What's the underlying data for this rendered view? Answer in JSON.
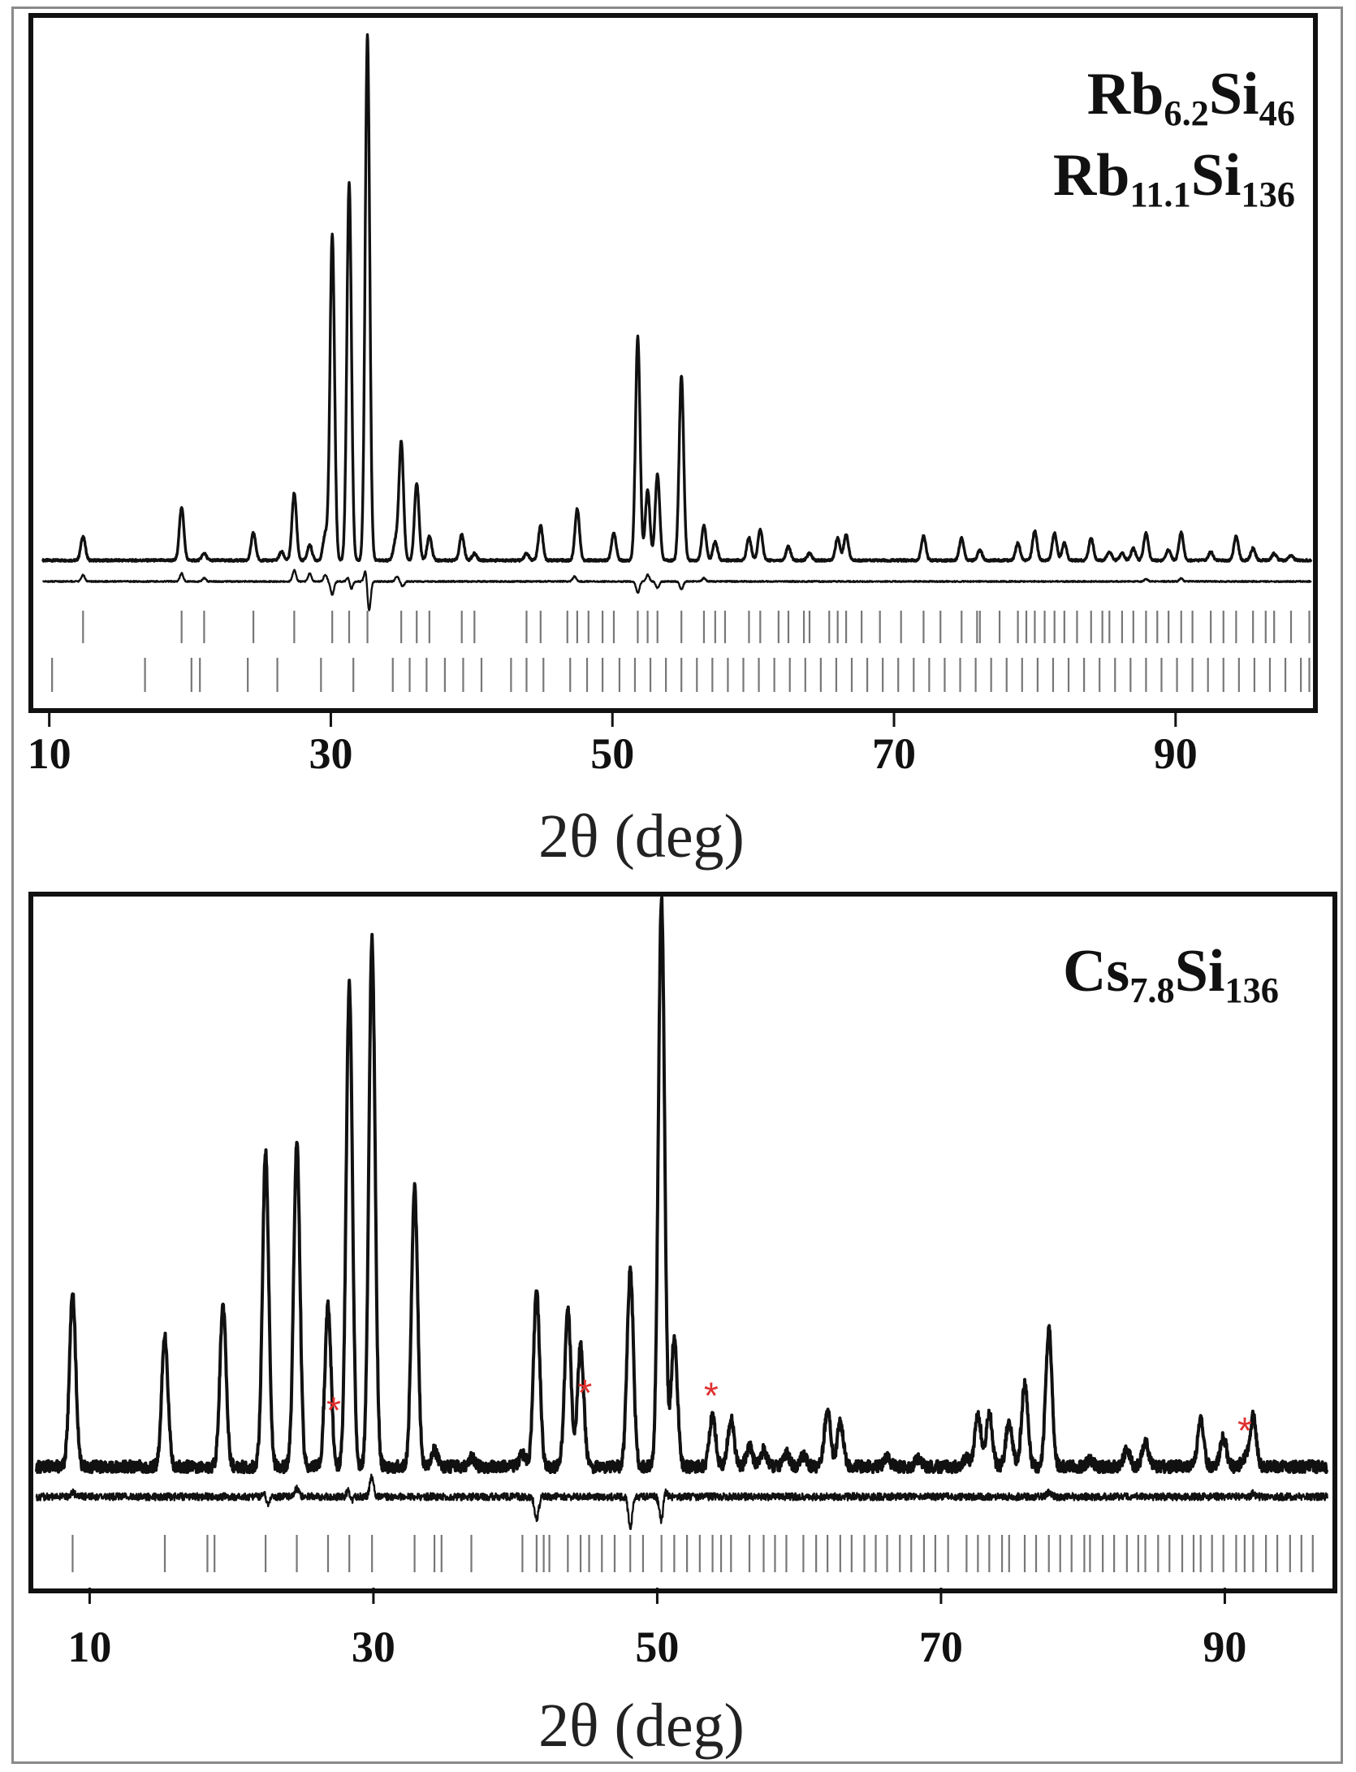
{
  "chart_data": [
    {
      "type": "line",
      "title_lines": [
        [
          {
            "t": "Rb",
            "sub": false
          },
          {
            "t": "6.2",
            "sub": true
          },
          {
            "t": "Si",
            "sub": false
          },
          {
            "t": "46",
            "sub": true
          }
        ],
        [
          {
            "t": "Rb",
            "sub": false
          },
          {
            "t": "11.1",
            "sub": true
          },
          {
            "t": "Si",
            "sub": false
          },
          {
            "t": "136",
            "sub": true
          }
        ]
      ],
      "xlabel": "2θ (deg)",
      "ylabel": "",
      "xlim": [
        9.5,
        99.7
      ],
      "xticks": [
        10,
        30,
        50,
        70,
        90
      ],
      "grid": false,
      "series": [
        {
          "role": "pattern",
          "peaks": [
            [
              12.4,
              28
            ],
            [
              19.4,
              62
            ],
            [
              21.0,
              8
            ],
            [
              24.5,
              32
            ],
            [
              26.5,
              10
            ],
            [
              27.4,
              78
            ],
            [
              28.5,
              18
            ],
            [
              29.6,
              30
            ],
            [
              30.1,
              380
            ],
            [
              31.3,
              440
            ],
            [
              32.6,
              610
            ],
            [
              34.6,
              22
            ],
            [
              35.0,
              138
            ],
            [
              36.1,
              90
            ],
            [
              37.0,
              28
            ],
            [
              39.3,
              30
            ],
            [
              40.2,
              8
            ],
            [
              43.9,
              8
            ],
            [
              44.9,
              40
            ],
            [
              47.5,
              60
            ],
            [
              50.1,
              32
            ],
            [
              51.8,
              260
            ],
            [
              52.5,
              82
            ],
            [
              53.2,
              100
            ],
            [
              54.9,
              215
            ],
            [
              56.5,
              40
            ],
            [
              57.3,
              22
            ],
            [
              59.7,
              26
            ],
            [
              60.5,
              36
            ],
            [
              62.5,
              16
            ],
            [
              64.0,
              8
            ],
            [
              66.0,
              26
            ],
            [
              66.6,
              30
            ],
            [
              72.1,
              28
            ],
            [
              74.8,
              26
            ],
            [
              76.1,
              12
            ],
            [
              78.8,
              20
            ],
            [
              80.0,
              34
            ],
            [
              81.4,
              32
            ],
            [
              82.1,
              20
            ],
            [
              84.0,
              26
            ],
            [
              85.3,
              10
            ],
            [
              86.2,
              8
            ],
            [
              87.0,
              14
            ],
            [
              87.9,
              32
            ],
            [
              89.5,
              12
            ],
            [
              90.4,
              32
            ],
            [
              92.5,
              10
            ],
            [
              94.3,
              28
            ],
            [
              95.5,
              14
            ],
            [
              97.0,
              8
            ],
            [
              98.2,
              6
            ]
          ]
        },
        {
          "role": "difference",
          "features": [
            [
              12.4,
              8
            ],
            [
              19.4,
              10
            ],
            [
              21.0,
              4
            ],
            [
              27.4,
              14
            ],
            [
              28.5,
              10
            ],
            [
              29.6,
              8
            ],
            [
              30.1,
              -16
            ],
            [
              31.3,
              12
            ],
            [
              31.4,
              -16
            ],
            [
              32.5,
              18
            ],
            [
              32.7,
              -40
            ],
            [
              34.7,
              6
            ],
            [
              35.1,
              -6
            ],
            [
              47.3,
              6
            ],
            [
              51.8,
              -14
            ],
            [
              52.5,
              8
            ],
            [
              53.2,
              -8
            ],
            [
              54.9,
              -10
            ],
            [
              56.5,
              4
            ],
            [
              87.9,
              3
            ],
            [
              90.4,
              4
            ]
          ]
        }
      ],
      "reflections": [
        [
          12.4,
          19.4,
          21.0,
          24.5,
          27.4,
          30.1,
          31.3,
          32.6,
          35.0,
          36.1,
          37.0,
          39.3,
          40.2,
          43.9,
          44.9,
          46.8,
          47.5,
          48.3,
          49.3,
          50.1,
          51.8,
          52.5,
          53.2,
          54.9,
          56.5,
          57.3,
          58.0,
          59.7,
          60.5,
          61.8,
          62.5,
          63.6,
          64.0,
          65.4,
          66.0,
          66.6,
          67.7,
          69.0,
          70.5,
          72.1,
          73.3,
          74.8,
          75.9,
          76.1,
          77.5,
          78.8,
          79.4,
          80.0,
          80.7,
          81.4,
          82.1,
          83.0,
          84.0,
          84.8,
          85.3,
          86.2,
          87.0,
          87.9,
          88.7,
          89.5,
          90.4,
          91.2,
          92.5,
          93.4,
          94.3,
          95.5,
          96.4,
          97.0,
          98.2,
          99.5
        ],
        [
          10.2,
          16.8,
          20.1,
          20.7,
          24.1,
          26.2,
          29.3,
          31.6,
          34.4,
          35.6,
          36.8,
          38.1,
          39.4,
          40.7,
          42.8,
          43.9,
          45.1,
          47.0,
          48.2,
          49.3,
          50.5,
          51.6,
          52.7,
          53.8,
          54.9,
          56.0,
          57.1,
          58.2,
          59.3,
          60.4,
          61.5,
          62.6,
          63.7,
          64.8,
          65.9,
          67.0,
          68.1,
          69.2,
          70.3,
          71.4,
          72.5,
          73.6,
          74.7,
          75.8,
          76.9,
          78.0,
          79.1,
          80.2,
          81.3,
          82.4,
          83.5,
          84.6,
          85.7,
          86.8,
          87.9,
          89.0,
          90.1,
          91.2,
          92.3,
          93.4,
          94.5,
          95.6,
          96.7,
          97.8,
          98.9,
          99.5
        ]
      ],
      "impurity_marks": []
    },
    {
      "type": "line",
      "title_lines": [
        [
          {
            "t": "Cs",
            "sub": false
          },
          {
            "t": "7.8",
            "sub": true
          },
          {
            "t": "Si",
            "sub": false
          },
          {
            "t": "136",
            "sub": true
          }
        ]
      ],
      "xlabel": "2θ (deg)",
      "ylabel": "",
      "xlim": [
        6.2,
        97.3
      ],
      "xticks": [
        10,
        30,
        50,
        70,
        90
      ],
      "grid": false,
      "series": [
        {
          "role": "pattern",
          "peaks": [
            [
              8.8,
              190
            ],
            [
              15.3,
              142
            ],
            [
              19.4,
              178
            ],
            [
              22.4,
              345
            ],
            [
              24.6,
              355
            ],
            [
              26.8,
              176
            ],
            [
              28.3,
              530
            ],
            [
              29.9,
              580
            ],
            [
              32.9,
              305
            ],
            [
              34.3,
              18
            ],
            [
              36.9,
              10
            ],
            [
              40.5,
              14
            ],
            [
              41.5,
              192
            ],
            [
              43.7,
              172
            ],
            [
              44.6,
              133
            ],
            [
              48.1,
              216
            ],
            [
              50.3,
              625
            ],
            [
              51.2,
              142
            ],
            [
              53.9,
              55
            ],
            [
              55.2,
              52
            ],
            [
              56.5,
              22
            ],
            [
              57.5,
              18
            ],
            [
              59.1,
              15
            ],
            [
              60.3,
              12
            ],
            [
              62.0,
              62
            ],
            [
              62.9,
              48
            ],
            [
              66.2,
              10
            ],
            [
              68.4,
              8
            ],
            [
              71.8,
              10
            ],
            [
              72.6,
              58
            ],
            [
              73.4,
              58
            ],
            [
              74.8,
              52
            ],
            [
              75.9,
              90
            ],
            [
              77.6,
              152
            ],
            [
              80.5,
              8
            ],
            [
              83.1,
              18
            ],
            [
              84.4,
              28
            ],
            [
              88.3,
              50
            ],
            [
              89.9,
              32
            ],
            [
              91.4,
              10
            ],
            [
              92.0,
              55
            ]
          ]
        },
        {
          "role": "difference",
          "features": [
            [
              8.8,
              6
            ],
            [
              22.4,
              12
            ],
            [
              22.5,
              -16
            ],
            [
              24.6,
              10
            ],
            [
              28.3,
              14
            ],
            [
              28.4,
              -12
            ],
            [
              29.9,
              28
            ],
            [
              30.0,
              -6
            ],
            [
              41.5,
              -28
            ],
            [
              48.1,
              -38
            ],
            [
              50.3,
              -32
            ],
            [
              50.5,
              10
            ],
            [
              77.6,
              6
            ],
            [
              92.0,
              4
            ]
          ]
        }
      ],
      "reflections": [
        [
          8.8,
          15.3,
          18.3,
          18.8,
          22.4,
          24.6,
          26.8,
          28.3,
          29.9,
          32.9,
          34.3,
          34.8,
          36.9,
          40.5,
          41.5,
          42.0,
          42.4,
          43.7,
          44.6,
          45.2,
          46.1,
          47.0,
          48.1,
          49.0,
          50.3,
          51.2,
          52.1,
          53.0,
          53.9,
          54.5,
          55.2,
          56.5,
          57.5,
          58.3,
          59.1,
          60.3,
          61.2,
          62.0,
          62.9,
          63.7,
          64.6,
          65.4,
          66.2,
          67.1,
          67.9,
          68.8,
          69.6,
          70.5,
          71.8,
          72.6,
          73.4,
          74.3,
          74.8,
          75.9,
          76.7,
          77.6,
          78.4,
          79.2,
          80.1,
          80.5,
          81.4,
          82.2,
          83.1,
          83.9,
          84.4,
          85.3,
          86.1,
          87.0,
          87.8,
          88.3,
          89.1,
          89.9,
          90.8,
          91.4,
          92.0,
          92.9,
          93.7,
          94.6,
          95.4,
          96.2
        ]
      ],
      "impurity_marks": [
        27.2,
        44.9,
        53.8,
        91.4
      ],
      "impurity_symbol": "*"
    }
  ]
}
